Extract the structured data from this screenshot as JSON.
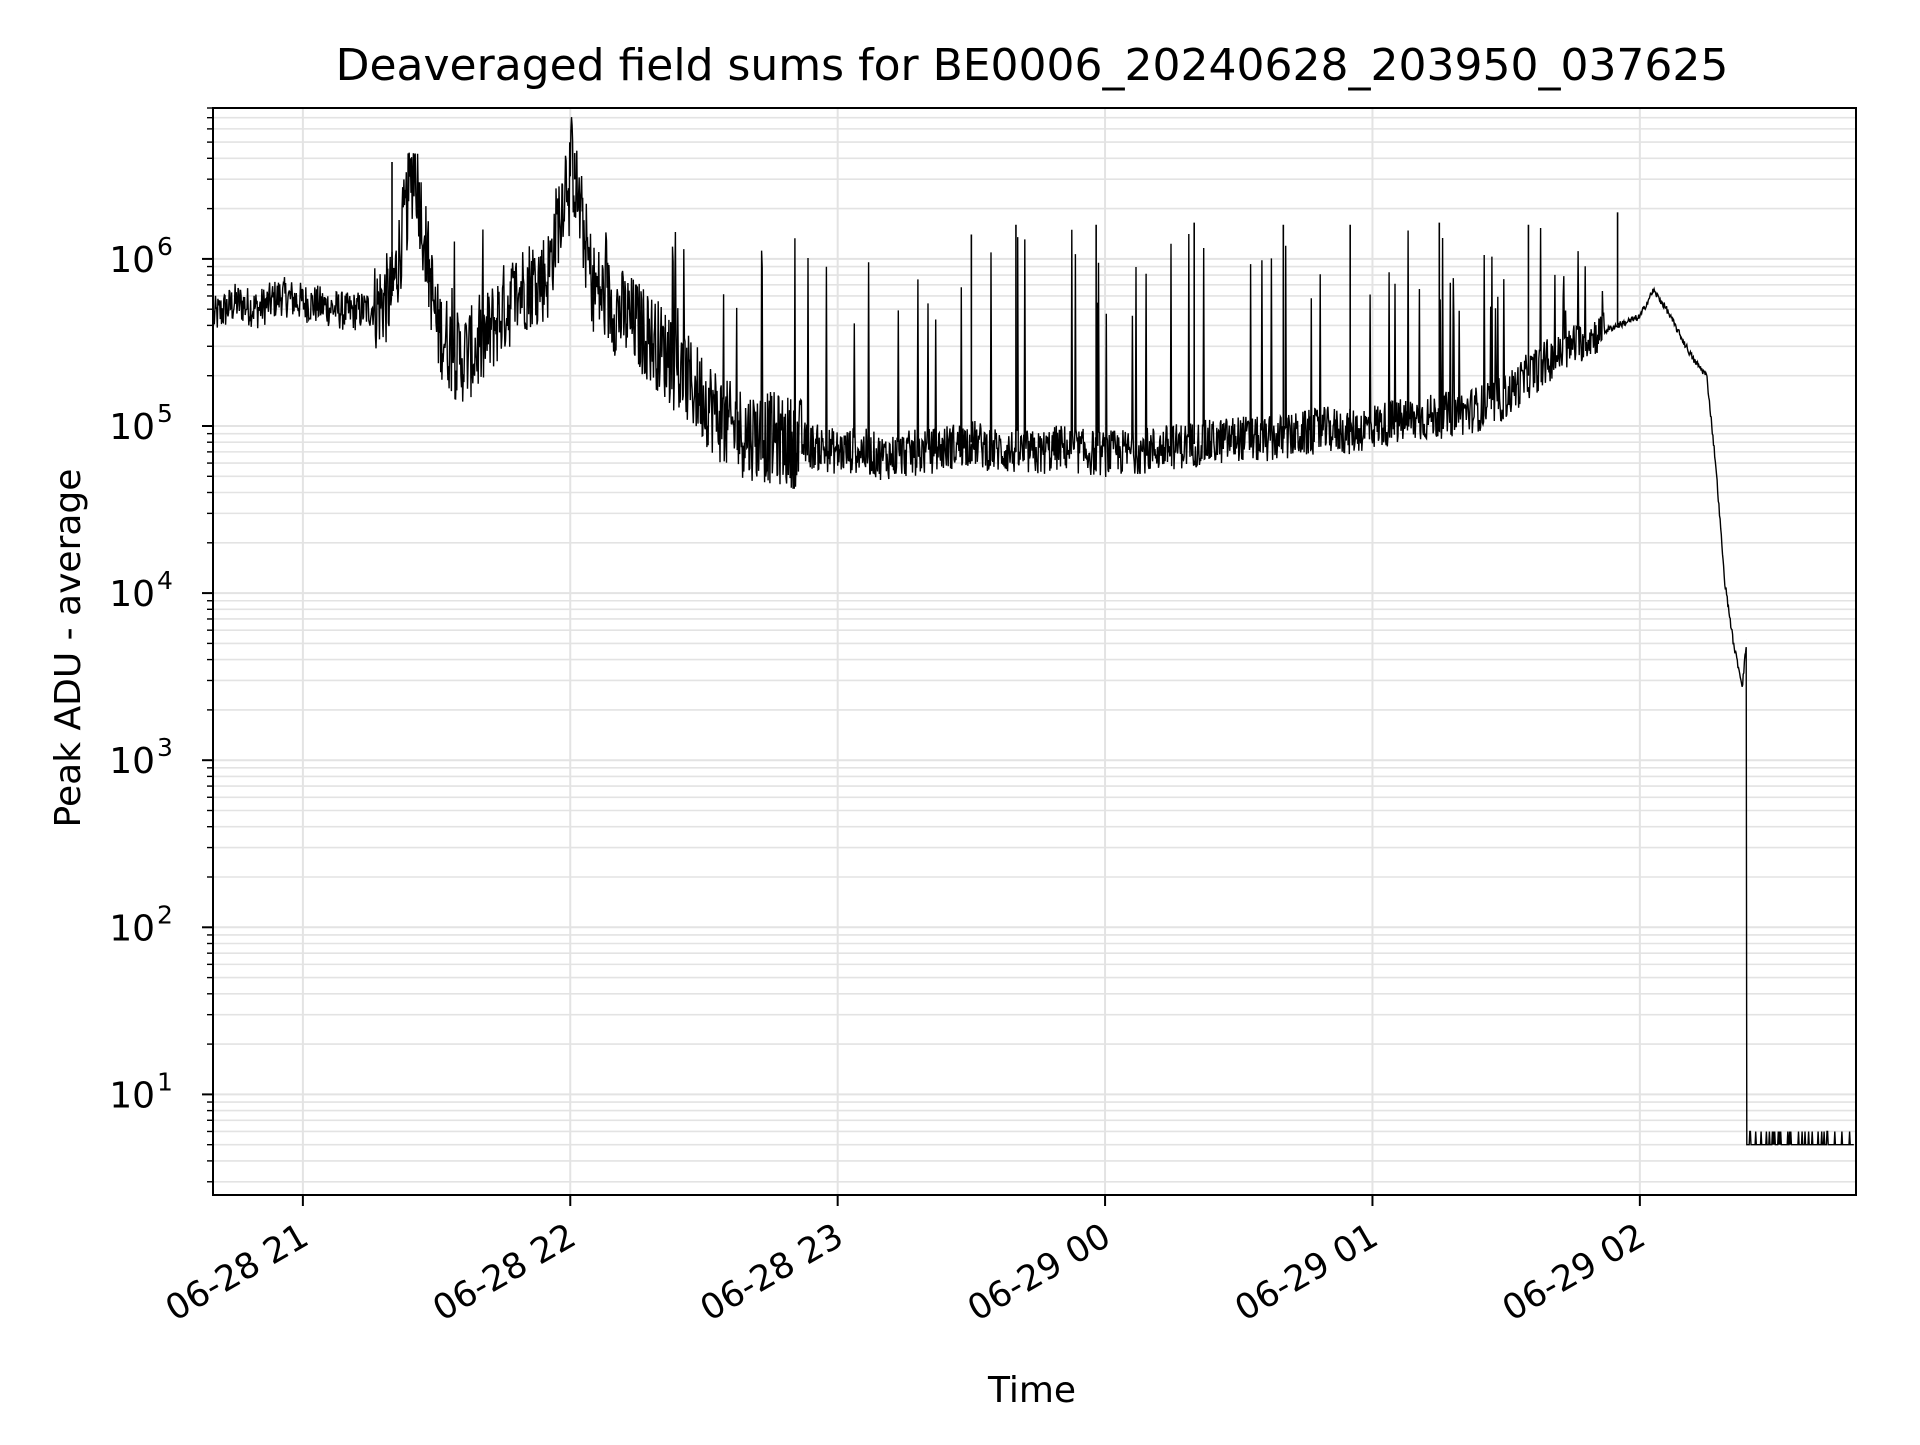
{
  "chart_data": {
    "type": "line",
    "title": "Deaveraged field sums for BE0006_20240628_203950_037625",
    "xlabel": "Time",
    "ylabel": "Peak ADU - average",
    "xscale": "time",
    "yscale": "log",
    "xlim": [
      "2024-06-28 20:39:50",
      "2024-06-29 02:48:30"
    ],
    "ylim": [
      2.5,
      8000000
    ],
    "grid": true,
    "x_ticks": [
      "06-28 21",
      "06-28 22",
      "06-28 23",
      "06-29 00",
      "06-29 01",
      "06-29 02"
    ],
    "y_ticks": [
      10,
      100,
      1000,
      10000,
      100000,
      1000000
    ],
    "y_tick_labels": [
      {
        "base": "10",
        "exp": "1"
      },
      {
        "base": "10",
        "exp": "2"
      },
      {
        "base": "10",
        "exp": "3"
      },
      {
        "base": "10",
        "exp": "4"
      },
      {
        "base": "10",
        "exp": "5"
      },
      {
        "base": "10",
        "exp": "6"
      }
    ],
    "series_color": "#000000",
    "grid_color": "#e3e3e3",
    "series": [
      {
        "x": [
          "2024-06-28 20:40",
          "2024-06-28 20:45",
          "2024-06-28 20:50",
          "2024-06-28 20:55",
          "2024-06-28 21:00",
          "2024-06-28 21:05",
          "2024-06-28 21:10",
          "2024-06-28 21:15",
          "2024-06-28 21:20",
          "2024-06-28 21:25",
          "2024-06-28 21:30",
          "2024-06-28 21:35",
          "2024-06-28 21:40",
          "2024-06-28 21:45",
          "2024-06-28 21:50",
          "2024-06-28 21:55",
          "2024-06-28 22:00",
          "2024-06-28 22:05",
          "2024-06-28 22:10",
          "2024-06-28 22:15",
          "2024-06-28 22:20",
          "2024-06-28 22:25",
          "2024-06-28 22:30",
          "2024-06-28 22:35",
          "2024-06-28 22:40",
          "2024-06-28 22:45",
          "2024-06-28 22:50",
          "2024-06-28 22:55",
          "2024-06-28 23:00",
          "2024-06-28 23:05",
          "2024-06-28 23:10",
          "2024-06-28 23:15",
          "2024-06-28 23:20",
          "2024-06-28 23:25",
          "2024-06-28 23:30",
          "2024-06-28 23:35",
          "2024-06-28 23:40",
          "2024-06-28 23:45",
          "2024-06-28 23:50",
          "2024-06-28 23:55",
          "2024-06-29 00:00",
          "2024-06-29 00:05",
          "2024-06-29 00:10",
          "2024-06-29 00:15",
          "2024-06-29 00:20",
          "2024-06-29 00:25",
          "2024-06-29 00:30",
          "2024-06-29 00:35",
          "2024-06-29 00:40",
          "2024-06-29 00:45",
          "2024-06-29 00:50",
          "2024-06-29 00:55",
          "2024-06-29 01:00",
          "2024-06-29 01:05",
          "2024-06-29 01:10",
          "2024-06-29 01:15",
          "2024-06-29 01:20",
          "2024-06-29 01:25",
          "2024-06-29 01:30",
          "2024-06-29 01:35",
          "2024-06-29 01:40",
          "2024-06-29 01:45",
          "2024-06-29 01:50",
          "2024-06-29 01:55",
          "2024-06-29 02:00",
          "2024-06-29 02:03",
          "2024-06-29 02:06",
          "2024-06-29 02:09",
          "2024-06-29 02:12",
          "2024-06-29 02:15",
          "2024-06-29 02:17",
          "2024-06-29 02:19",
          "2024-06-29 02:21",
          "2024-06-29 02:23",
          "2024-06-29 02:24",
          "2024-06-29 02:25",
          "2024-06-29 02:30",
          "2024-06-29 02:35",
          "2024-06-29 02:40",
          "2024-06-29 02:45",
          "2024-06-29 02:48"
        ],
        "y": [
          450000,
          550000,
          500000,
          600000,
          550000,
          520000,
          480000,
          500000,
          600000,
          3800000,
          400000,
          250000,
          300000,
          500000,
          700000,
          800000,
          4300000,
          700000,
          500000,
          400000,
          300000,
          200000,
          150000,
          100000,
          90000,
          85000,
          80000,
          75000,
          70000,
          72000,
          65000,
          68000,
          70000,
          75000,
          80000,
          72000,
          70000,
          68000,
          75000,
          70000,
          68000,
          70000,
          72000,
          75000,
          78000,
          80000,
          85000,
          82000,
          85000,
          90000,
          95000,
          92000,
          100000,
          105000,
          110000,
          115000,
          120000,
          130000,
          150000,
          200000,
          250000,
          300000,
          350000,
          400000,
          450000,
          650000,
          500000,
          350000,
          250000,
          200000,
          60000,
          12000,
          5000,
          2800,
          5300,
          5,
          5,
          5,
          5,
          5,
          5
        ],
        "spikes": [
          {
            "x": "2024-06-28 21:20",
            "y": 3800000
          },
          {
            "x": "2024-06-28 22:01",
            "y": 4300000
          },
          {
            "x": "2024-06-28 23:30",
            "y": 1400000
          },
          {
            "x": "2024-06-28 23:40",
            "y": 1600000
          },
          {
            "x": "2024-06-28 23:58",
            "y": 1600000
          },
          {
            "x": "2024-06-29 00:20",
            "y": 1650000
          },
          {
            "x": "2024-06-29 00:40",
            "y": 1600000
          },
          {
            "x": "2024-06-29 00:55",
            "y": 1600000
          },
          {
            "x": "2024-06-29 01:15",
            "y": 1650000
          },
          {
            "x": "2024-06-29 01:35",
            "y": 1600000
          },
          {
            "x": "2024-06-29 01:55",
            "y": 1900000
          }
        ]
      }
    ]
  }
}
